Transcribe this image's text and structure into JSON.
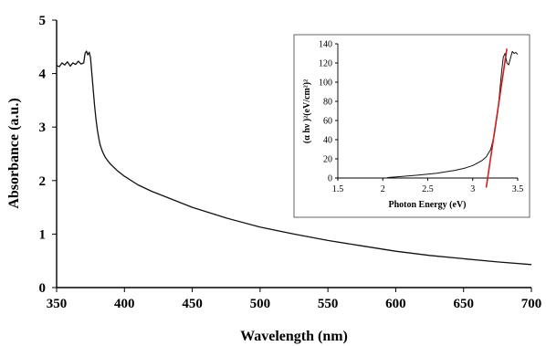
{
  "chart_data": [
    {
      "type": "line",
      "title": "",
      "xlabel": "Wavelength (nm)",
      "ylabel": "Absorbance (a.u.)",
      "xlim": [
        350,
        700
      ],
      "ylim": [
        0,
        5
      ],
      "xticks": [
        350,
        400,
        450,
        500,
        550,
        600,
        650,
        700
      ],
      "yticks": [
        0,
        1,
        2,
        3,
        4,
        5
      ],
      "grid": false,
      "series": [
        {
          "color": "#111111",
          "x": [
            350,
            352,
            354,
            356,
            358,
            360,
            362,
            364,
            366,
            368,
            370,
            371,
            372,
            373,
            374,
            375,
            376,
            377,
            378,
            379,
            380,
            381,
            382,
            383,
            384,
            385,
            386,
            388,
            390,
            395,
            400,
            410,
            420,
            430,
            450,
            475,
            500,
            525,
            550,
            575,
            600,
            625,
            650,
            675,
            700
          ],
          "y": [
            4.15,
            4.13,
            4.2,
            4.16,
            4.22,
            4.14,
            4.2,
            4.17,
            4.23,
            4.18,
            4.2,
            4.38,
            4.42,
            4.35,
            4.4,
            4.3,
            4.0,
            3.7,
            3.4,
            3.15,
            2.95,
            2.8,
            2.68,
            2.6,
            2.53,
            2.48,
            2.43,
            2.36,
            2.3,
            2.18,
            2.08,
            1.92,
            1.8,
            1.7,
            1.5,
            1.3,
            1.13,
            1.0,
            0.88,
            0.78,
            0.68,
            0.6,
            0.54,
            0.48,
            0.43
          ]
        }
      ]
    },
    {
      "type": "line",
      "title": "",
      "xlabel": "Photon Energy (eV)",
      "ylabel": "(α hν )²(eV/cm²)²",
      "xlim": [
        1.5,
        3.5
      ],
      "ylim": [
        0,
        140
      ],
      "xticks": [
        1.5,
        2,
        2.5,
        3,
        3.5
      ],
      "xtick_labels": [
        "1.5",
        "2",
        "2.5",
        "3",
        "3.5"
      ],
      "yticks": [
        0,
        20,
        40,
        60,
        80,
        100,
        120,
        140
      ],
      "grid": false,
      "series": [
        {
          "color": "#111111",
          "x": [
            2.05,
            2.2,
            2.4,
            2.6,
            2.8,
            2.9,
            3.0,
            3.1,
            3.15,
            3.2,
            3.24,
            3.28,
            3.3,
            3.32,
            3.34,
            3.36,
            3.38,
            3.4,
            3.42,
            3.44,
            3.46,
            3.48,
            3.5
          ],
          "y": [
            0.5,
            1.5,
            3,
            5,
            8,
            10,
            13,
            18,
            22,
            30,
            45,
            70,
            90,
            110,
            126,
            130,
            120,
            118,
            125,
            132,
            130,
            131,
            129
          ]
        }
      ],
      "fit_line": {
        "color": "#cc2222",
        "x": [
          3.15,
          3.38
        ],
        "y": [
          -10,
          135
        ]
      }
    }
  ]
}
